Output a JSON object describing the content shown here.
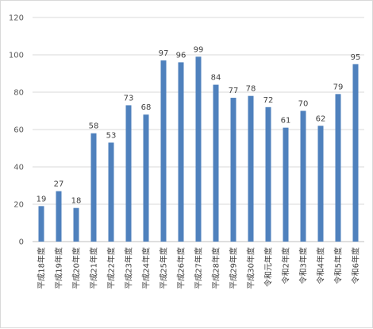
{
  "chart_data": {
    "type": "bar",
    "title": "",
    "xlabel": "",
    "ylabel": "",
    "ylim": [
      0,
      120
    ],
    "yticks": [
      0,
      20,
      40,
      60,
      80,
      100,
      120
    ],
    "grid": true,
    "legend": "none",
    "bar_color": "#4f81bd",
    "categories": [
      "平成18年度",
      "平成19年度",
      "平成20年度",
      "平成21年度",
      "平成22年度",
      "平成23年度",
      "平成24年度",
      "平成25年度",
      "平成26年度",
      "平成27年度",
      "平成28年度",
      "平成29年度",
      "平成30年度",
      "令和元年度",
      "令和2年度",
      "令和3年度",
      "令和4年度",
      "令和5年度",
      "令和6年度"
    ],
    "values": [
      19,
      27,
      18,
      58,
      53,
      73,
      68,
      97,
      96,
      99,
      84,
      77,
      78,
      72,
      61,
      70,
      62,
      79,
      95
    ]
  }
}
